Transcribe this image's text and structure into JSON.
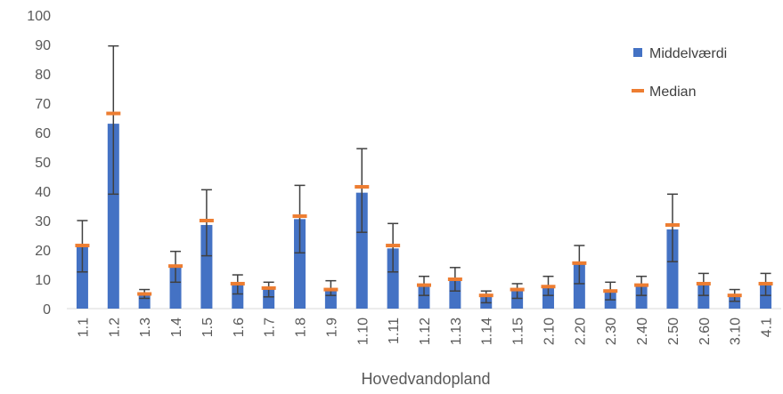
{
  "chart_data": {
    "type": "bar",
    "title": "",
    "xlabel": "Hovedvandopland",
    "ylabel": "",
    "ylim": [
      0,
      100
    ],
    "yticks": [
      0,
      10,
      20,
      30,
      40,
      50,
      60,
      70,
      80,
      90,
      100
    ],
    "grid": false,
    "legend": "right",
    "categories": [
      "1.1",
      "1.2",
      "1.3",
      "1.4",
      "1.5",
      "1.6",
      "1.7",
      "1.8",
      "1.9",
      "1.10",
      "1.11",
      "1.12",
      "1.13",
      "1.14",
      "1.15",
      "2.10",
      "2.20",
      "2.30",
      "2.40",
      "2.50",
      "2.60",
      "3.10",
      "4.1"
    ],
    "series": [
      {
        "name": "Middelværdi",
        "type": "bar",
        "color": "#4472c4",
        "values": [
          21,
          63,
          5,
          15,
          28.5,
          8.5,
          6.5,
          30.5,
          6.5,
          39.5,
          20.5,
          8,
          9.5,
          4,
          6,
          7.5,
          15,
          5.5,
          8,
          27,
          8.5,
          4.5,
          8
        ],
        "error_upper": [
          30,
          89.5,
          6.5,
          19.5,
          40.5,
          11.5,
          9,
          42,
          9.5,
          54.5,
          29,
          11,
          14,
          6,
          8.5,
          11,
          21.5,
          9,
          11,
          39,
          12,
          6.5,
          12
        ],
        "error_lower": [
          12.5,
          39,
          3.5,
          9,
          18,
          5,
          4,
          19,
          4.5,
          26,
          12.5,
          4.5,
          6,
          2,
          3.5,
          4.5,
          8.5,
          3,
          4.5,
          16,
          4.5,
          2.5,
          4.5
        ]
      },
      {
        "name": "Median",
        "type": "marker",
        "color": "#ed7d31",
        "values": [
          21.5,
          66.5,
          5,
          14.5,
          30,
          8.5,
          7,
          31.5,
          6.5,
          41.5,
          21.5,
          8,
          10,
          4.5,
          6.5,
          7.5,
          15.5,
          6,
          8,
          28.5,
          8.5,
          4.5,
          8.5
        ]
      }
    ]
  }
}
